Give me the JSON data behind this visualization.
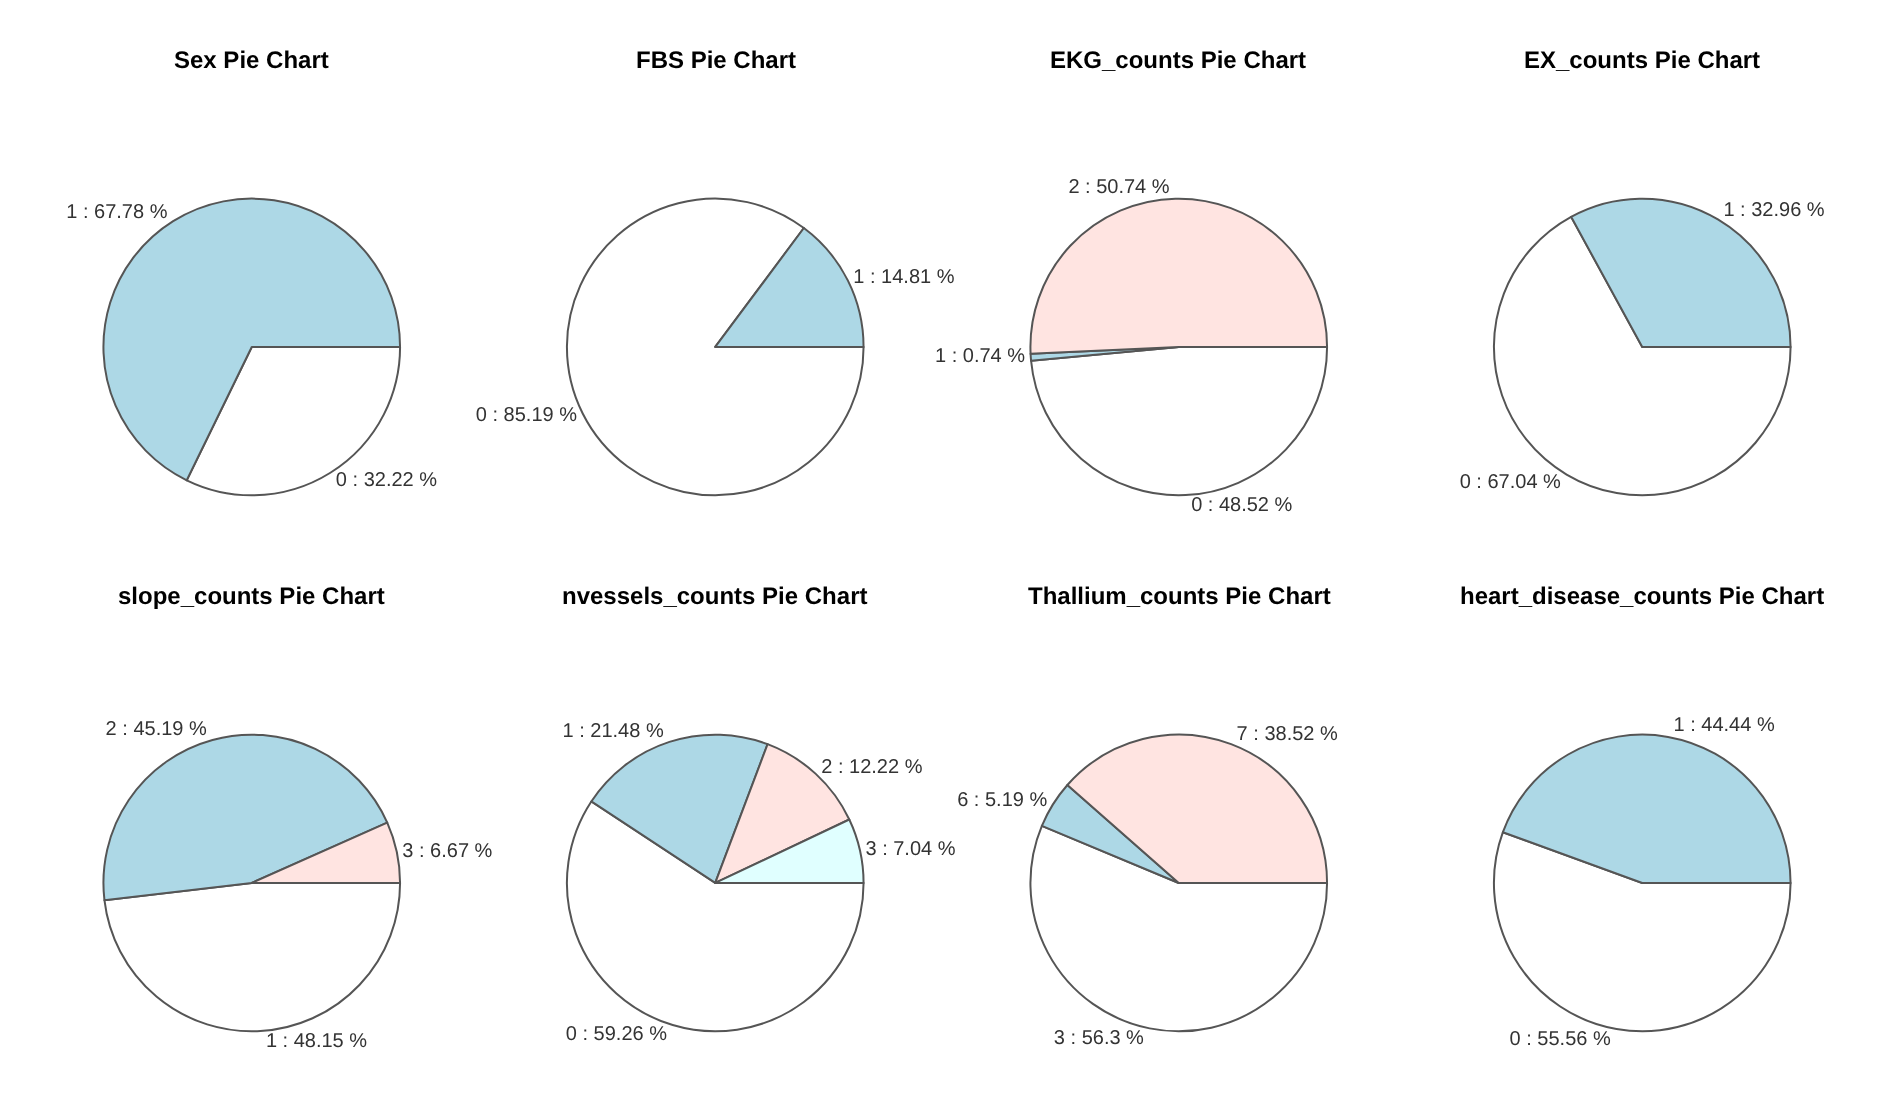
{
  "chart_data": [
    {
      "type": "pie",
      "title": "Sex Pie Chart",
      "categories": [
        "0 : 32.22 %",
        "1 : 67.78 %"
      ],
      "values": [
        32.22,
        67.78
      ],
      "colors": [
        "#ffffff",
        "#add8e6"
      ]
    },
    {
      "type": "pie",
      "title": "FBS Pie Chart",
      "categories": [
        "0 : 85.19 %",
        "1 : 14.81 %"
      ],
      "values": [
        85.19,
        14.81
      ],
      "colors": [
        "#ffffff",
        "#add8e6"
      ]
    },
    {
      "type": "pie",
      "title": "EKG_counts Pie Chart",
      "categories": [
        "0 : 48.52 %",
        "1 : 0.74 %",
        "2 : 50.74 %"
      ],
      "values": [
        48.52,
        0.74,
        50.74
      ],
      "colors": [
        "#ffffff",
        "#add8e6",
        "#ffe4e1"
      ]
    },
    {
      "type": "pie",
      "title": "EX_counts Pie Chart",
      "categories": [
        "0 : 67.04 %",
        "1 : 32.96 %"
      ],
      "values": [
        67.04,
        32.96
      ],
      "colors": [
        "#ffffff",
        "#add8e6"
      ]
    },
    {
      "type": "pie",
      "title": "slope_counts Pie Chart",
      "categories": [
        "1 : 48.15 %",
        "2 : 45.19 %",
        "3 : 6.67 %"
      ],
      "values": [
        48.15,
        45.19,
        6.67
      ],
      "colors": [
        "#ffffff",
        "#add8e6",
        "#ffe4e1"
      ]
    },
    {
      "type": "pie",
      "title": "nvessels_counts Pie Chart",
      "categories": [
        "0 : 59.26 %",
        "1 : 21.48 %",
        "2 : 12.22 %",
        "3 : 7.04 %"
      ],
      "values": [
        59.26,
        21.48,
        12.22,
        7.04
      ],
      "colors": [
        "#ffffff",
        "#add8e6",
        "#ffe4e1",
        "#e0ffff"
      ]
    },
    {
      "type": "pie",
      "title": "Thallium_counts Pie Chart",
      "categories": [
        "3 : 56.3 %",
        "6 : 5.19 %",
        "7 : 38.52 %"
      ],
      "values": [
        56.3,
        5.19,
        38.52
      ],
      "colors": [
        "#ffffff",
        "#add8e6",
        "#ffe4e1"
      ]
    },
    {
      "type": "pie",
      "title": "heart_disease_counts Pie Chart",
      "categories": [
        "0 : 55.56 %",
        "1 : 44.44 %"
      ],
      "values": [
        55.56,
        44.44
      ],
      "colors": [
        "#ffffff",
        "#add8e6"
      ]
    }
  ]
}
